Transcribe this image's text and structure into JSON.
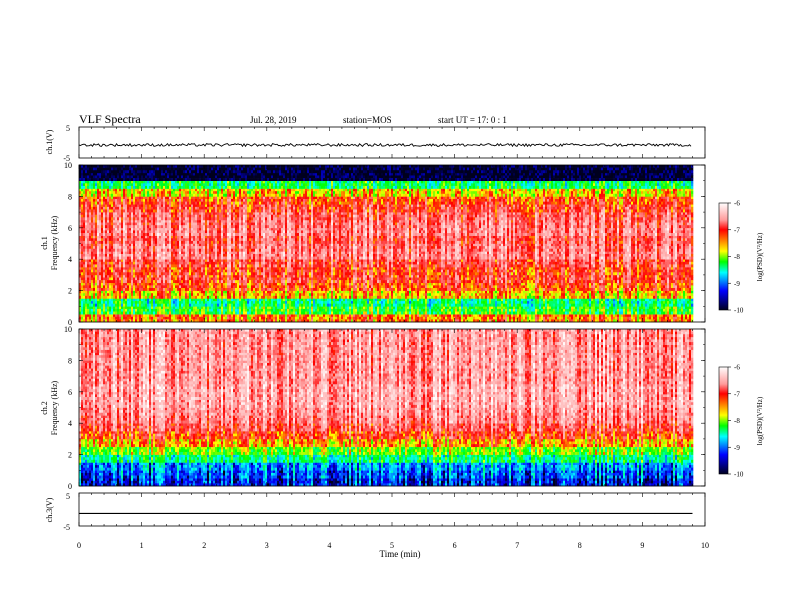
{
  "header": {
    "title": "VLF Spectra",
    "date": "Jul. 28, 2019",
    "station": "station=MOS",
    "start": "start UT = 17: 0 : 1"
  },
  "panels": {
    "ch1_waveform": {
      "label": "ch.1(V)",
      "ytick_top": "5",
      "ytick_bottom": "-5"
    },
    "ch1_spectrogram": {
      "label_line1": "ch.1",
      "label_line2": "Frequency (kHz)"
    },
    "ch2_spectrogram": {
      "label_line1": "ch.2",
      "label_line2": "Frequency (kHz)"
    },
    "ch3_waveform": {
      "label": "ch.3(V)",
      "ytick_top": "5",
      "ytick_bottom": "-5"
    }
  },
  "colorbar": {
    "label": "log(PSD)(V²/Hz)",
    "ticks": [
      "-6",
      "-7",
      "-8",
      "-9",
      "-10"
    ],
    "colors": [
      "#ffffff",
      "#ff0000",
      "#ffff00",
      "#00ff00",
      "#00ffff",
      "#0000ff",
      "#000000"
    ]
  },
  "chart_data": [
    {
      "type": "line",
      "panel": "ch1_waveform",
      "ylabel": "ch.1(V)",
      "ylim": [
        -5,
        5
      ],
      "xlim": [
        0,
        10
      ],
      "x": [
        0,
        1,
        2,
        3,
        4,
        5,
        6,
        7,
        8,
        9,
        9.8
      ],
      "y": [
        -0.8,
        -0.8,
        -0.8,
        -0.8,
        -0.8,
        -0.8,
        -0.8,
        -0.8,
        -0.8,
        -0.8,
        -0.8
      ]
    },
    {
      "type": "heatmap",
      "panel": "ch1_spectrogram",
      "ylabel": "Frequency (kHz)",
      "xlim": [
        0,
        10
      ],
      "ylim": [
        0,
        10
      ],
      "yticks": [
        "0",
        "2",
        "4",
        "6",
        "8",
        "10"
      ],
      "data_xmax": 9.8,
      "freq_bands_kHz": [
        0,
        0.5,
        1,
        1.5,
        2,
        2.5,
        3,
        3.5,
        4,
        4.5,
        5,
        5.5,
        6,
        6.5,
        7,
        7.5,
        8,
        8.5,
        9,
        9.5,
        10
      ],
      "log_psd": [
        -7.3,
        -8.2,
        -8.5,
        -7.5,
        -7.1,
        -6.9,
        -7.0,
        -6.8,
        -6.5,
        -6.6,
        -6.7,
        -6.5,
        -6.6,
        -6.7,
        -6.9,
        -7.1,
        -7.6,
        -8.4,
        -10,
        -10
      ]
    },
    {
      "type": "heatmap",
      "panel": "ch2_spectrogram",
      "ylabel": "Frequency (kHz)",
      "xlim": [
        0,
        10
      ],
      "ylim": [
        0,
        10
      ],
      "yticks": [
        "0",
        "2",
        "4",
        "6",
        "8",
        "10"
      ],
      "data_xmax": 9.8,
      "freq_bands_kHz": [
        0,
        0.5,
        1,
        1.5,
        2,
        2.5,
        3,
        3.5,
        4,
        4.5,
        5,
        5.5,
        6,
        6.5,
        7,
        7.5,
        8,
        8.5,
        9,
        9.5,
        10
      ],
      "log_psd": [
        -9.5,
        -9.3,
        -9.1,
        -8.5,
        -8.0,
        -7.4,
        -7.0,
        -6.7,
        -6.5,
        -6.4,
        -6.3,
        -6.3,
        -6.3,
        -6.4,
        -6.4,
        -6.4,
        -6.4,
        -6.4,
        -6.4,
        -6.4
      ]
    },
    {
      "type": "line",
      "panel": "ch3_waveform",
      "ylabel": "ch.3(V)",
      "ylim": [
        -5,
        5
      ],
      "xlim": [
        0,
        10
      ],
      "x": [
        0,
        9.8
      ],
      "y": [
        -1.2,
        -1.2
      ]
    }
  ],
  "xaxis": {
    "label": "Time (min)",
    "ticks": [
      "0",
      "1",
      "2",
      "3",
      "4",
      "5",
      "6",
      "7",
      "8",
      "9",
      "10"
    ],
    "range": [
      0,
      10
    ]
  }
}
